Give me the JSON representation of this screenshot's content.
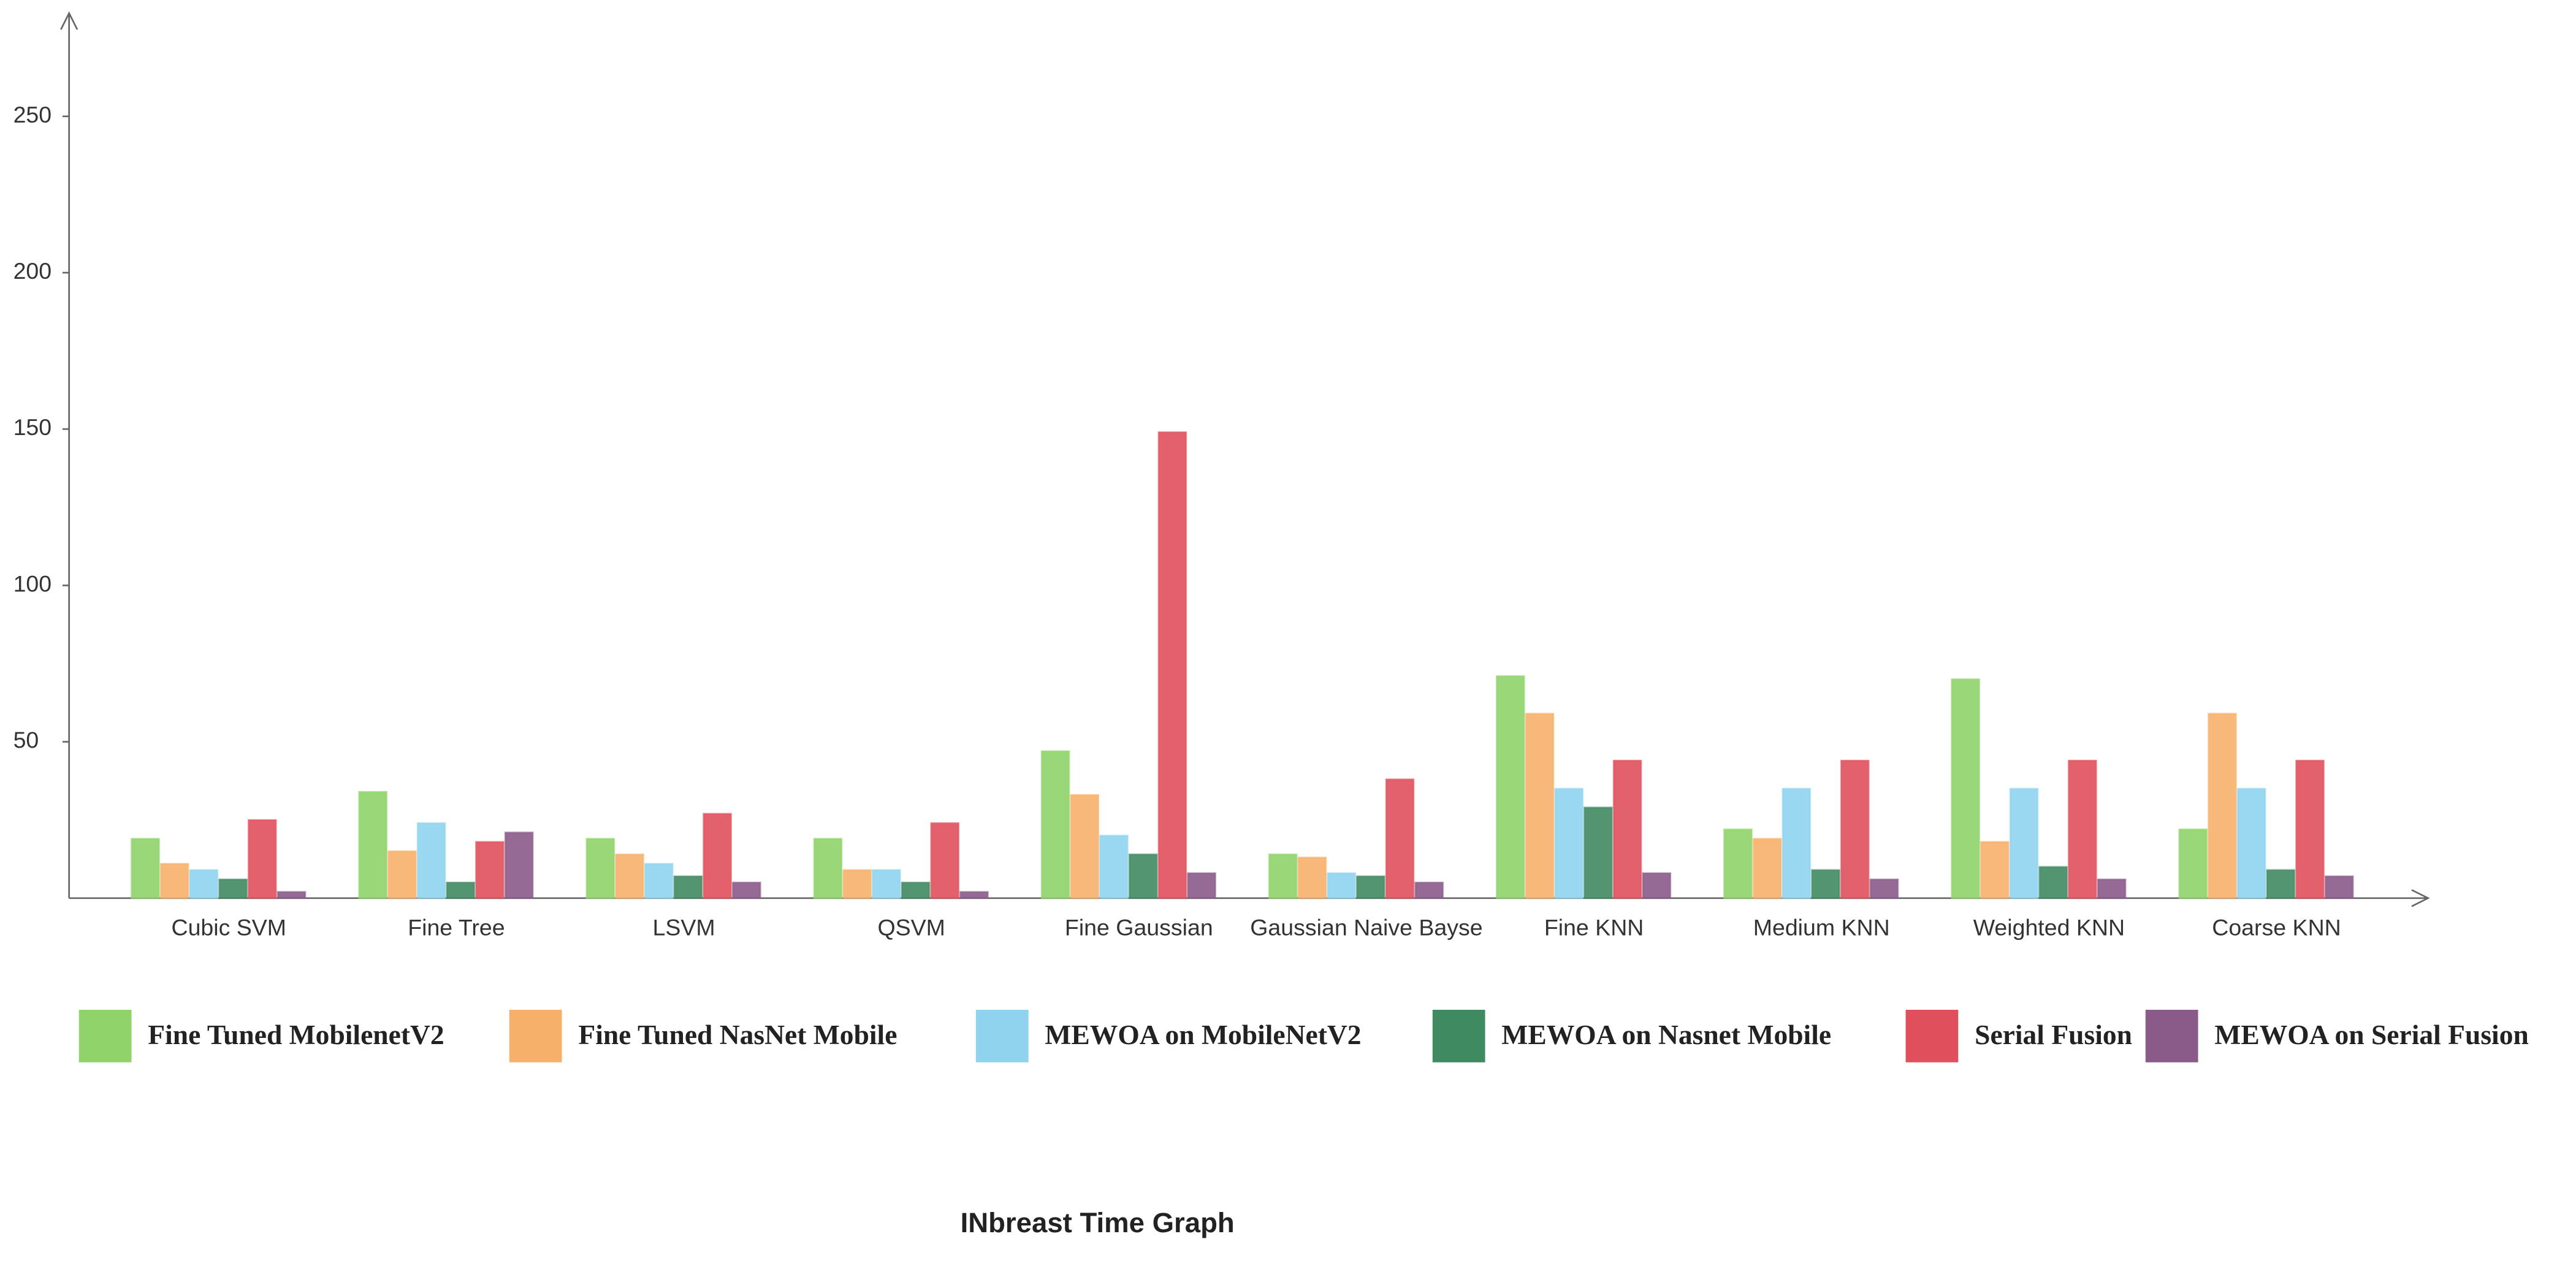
{
  "chart_data": {
    "type": "bar",
    "title": "INbreast Time Graph",
    "categories": [
      "Cubic SVM",
      "Fine Tree",
      "LSVM",
      "QSVM",
      "Fine Gaussian",
      "Gaussian Naive Bayse",
      "Fine KNN",
      "Medium KNN",
      "Weighted KNN",
      "Coarse KNN"
    ],
    "series": [
      {
        "name": "Fine Tuned MobilenetV2",
        "color": "#8fd36a",
        "values": [
          19,
          34,
          19,
          19,
          47,
          14,
          71,
          22,
          70,
          22
        ]
      },
      {
        "name": "Fine Tuned NasNet Mobile",
        "color": "#f7b06a",
        "values": [
          11,
          15,
          14,
          9,
          33,
          13,
          59,
          19,
          18,
          59
        ]
      },
      {
        "name": "MEWOA on MobileNetV2",
        "color": "#8fd3ee",
        "values": [
          9,
          24,
          11,
          9,
          20,
          8,
          35,
          35,
          35,
          35
        ]
      },
      {
        "name": "MEWOA on Nasnet Mobile",
        "color": "#3f8a60",
        "values": [
          6,
          5,
          7,
          5,
          14,
          7,
          29,
          9,
          10,
          9
        ]
      },
      {
        "name": "Serial Fusion",
        "color": "#e0505c",
        "values": [
          25,
          18,
          27,
          24,
          149,
          38,
          44,
          44,
          44,
          44
        ]
      },
      {
        "name": "MEWOA on Serial Fusion",
        "color": "#8a5a88",
        "values": [
          2,
          21,
          5,
          2,
          8,
          5,
          8,
          6,
          6,
          7
        ]
      }
    ],
    "ylim": [
      0,
      283
    ],
    "yticks": [
      50,
      100,
      150,
      200,
      250
    ],
    "grid": false
  }
}
